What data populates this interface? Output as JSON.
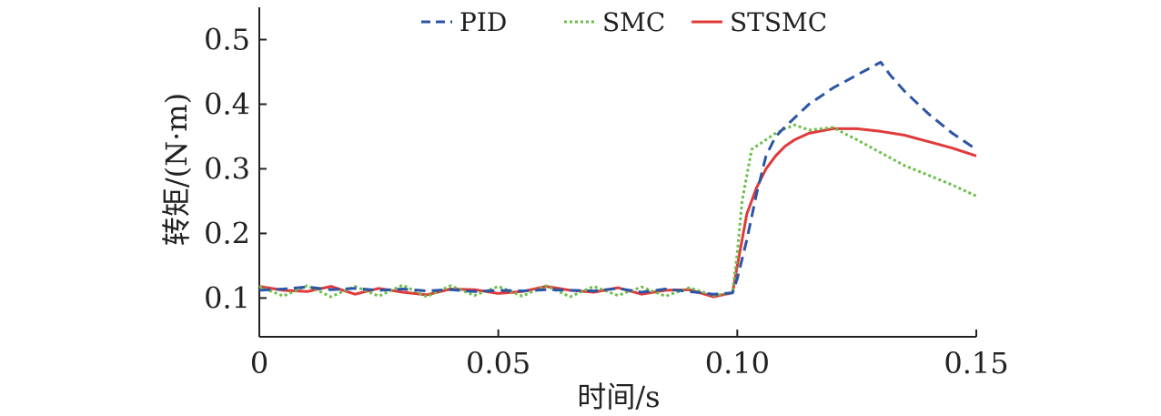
{
  "chart_data": {
    "type": "line",
    "title": "",
    "xlabel": "时间/s",
    "ylabel": "转矩/(N·m)",
    "xlim": [
      0,
      0.15
    ],
    "ylim": [
      0.04,
      0.55
    ],
    "x_ticks": [
      0,
      0.05,
      0.1,
      0.15
    ],
    "x_tick_labels": [
      "0",
      "0.05",
      "0.10",
      "0.15"
    ],
    "y_ticks": [
      0.1,
      0.2,
      0.3,
      0.4,
      0.5
    ],
    "y_tick_labels": [
      "0.1",
      "0.2",
      "0.3",
      "0.4",
      "0.5"
    ],
    "grid": false,
    "legend_position": "top-center",
    "series": [
      {
        "name": "PID",
        "color": "#2b55a5",
        "style": "dashed",
        "x": [
          0,
          0.005,
          0.01,
          0.015,
          0.02,
          0.025,
          0.03,
          0.035,
          0.04,
          0.045,
          0.05,
          0.055,
          0.06,
          0.065,
          0.07,
          0.075,
          0.08,
          0.085,
          0.09,
          0.095,
          0.099,
          0.1,
          0.102,
          0.104,
          0.106,
          0.108,
          0.11,
          0.115,
          0.12,
          0.125,
          0.13,
          0.132,
          0.135,
          0.14,
          0.145,
          0.15
        ],
        "y": [
          0.112,
          0.114,
          0.117,
          0.113,
          0.115,
          0.112,
          0.114,
          0.111,
          0.113,
          0.11,
          0.112,
          0.111,
          0.113,
          0.112,
          0.111,
          0.115,
          0.109,
          0.114,
          0.11,
          0.106,
          0.108,
          0.13,
          0.19,
          0.26,
          0.32,
          0.35,
          0.365,
          0.4,
          0.425,
          0.445,
          0.465,
          0.445,
          0.42,
          0.385,
          0.355,
          0.33
        ]
      },
      {
        "name": "SMC",
        "color": "#6cbf4a",
        "style": "dotted",
        "x": [
          0,
          0.005,
          0.01,
          0.015,
          0.02,
          0.025,
          0.03,
          0.035,
          0.04,
          0.045,
          0.05,
          0.055,
          0.06,
          0.065,
          0.07,
          0.075,
          0.08,
          0.085,
          0.09,
          0.095,
          0.099,
          0.1,
          0.101,
          0.103,
          0.105,
          0.108,
          0.11,
          0.112,
          0.115,
          0.12,
          0.125,
          0.13,
          0.135,
          0.14,
          0.145,
          0.15
        ],
        "y": [
          0.118,
          0.103,
          0.119,
          0.102,
          0.118,
          0.103,
          0.12,
          0.102,
          0.119,
          0.104,
          0.118,
          0.103,
          0.119,
          0.102,
          0.118,
          0.104,
          0.117,
          0.103,
          0.116,
          0.104,
          0.108,
          0.17,
          0.25,
          0.33,
          0.34,
          0.355,
          0.362,
          0.368,
          0.36,
          0.364,
          0.345,
          0.325,
          0.305,
          0.29,
          0.275,
          0.258
        ]
      },
      {
        "name": "STSMC",
        "color": "#e03a3a",
        "style": "solid",
        "x": [
          0,
          0.005,
          0.01,
          0.015,
          0.02,
          0.025,
          0.03,
          0.035,
          0.04,
          0.045,
          0.05,
          0.055,
          0.06,
          0.065,
          0.07,
          0.075,
          0.08,
          0.085,
          0.09,
          0.095,
          0.099,
          0.1,
          0.101,
          0.102,
          0.104,
          0.106,
          0.108,
          0.11,
          0.112,
          0.115,
          0.12,
          0.125,
          0.13,
          0.135,
          0.14,
          0.145,
          0.15
        ],
        "y": [
          0.118,
          0.112,
          0.11,
          0.118,
          0.106,
          0.115,
          0.109,
          0.105,
          0.114,
          0.113,
          0.107,
          0.11,
          0.118,
          0.112,
          0.109,
          0.116,
          0.106,
          0.112,
          0.113,
          0.102,
          0.108,
          0.15,
          0.19,
          0.23,
          0.27,
          0.3,
          0.32,
          0.335,
          0.345,
          0.355,
          0.362,
          0.362,
          0.358,
          0.352,
          0.342,
          0.332,
          0.32
        ]
      }
    ]
  }
}
